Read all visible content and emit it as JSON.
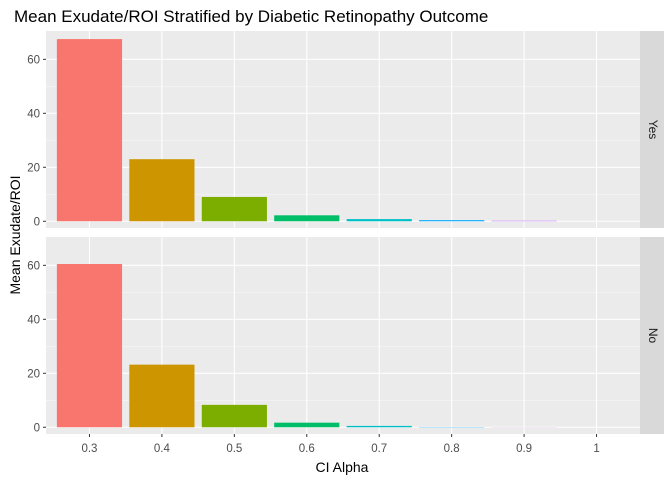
{
  "chart_data": {
    "type": "bar",
    "title": "Mean Exudate/ROI Stratified by Diabetic Retinopathy Outcome",
    "xlabel": "CI Alpha",
    "ylabel": "Mean Exudate/ROI",
    "categories": [
      "0.3",
      "0.4",
      "0.5",
      "0.6",
      "0.7",
      "0.8",
      "0.9",
      "1"
    ],
    "colors": [
      "#F8766D",
      "#CD9600",
      "#7CAE00",
      "#00BE67",
      "#00BFC4",
      "#00A9FF",
      "#C77CFF",
      "#FF61CC"
    ],
    "ylim": [
      -2.5,
      70.5
    ],
    "yticks": [
      0,
      20,
      40,
      60
    ],
    "grid": true,
    "legend": "none",
    "panels": [
      {
        "strip": "Yes",
        "values": [
          67.5,
          23.0,
          9.0,
          2.2,
          0.8,
          0.4,
          0.2,
          0.0
        ]
      },
      {
        "strip": "No",
        "values": [
          60.5,
          23.2,
          8.3,
          1.7,
          0.5,
          0.1,
          0.05,
          0.0
        ]
      }
    ]
  }
}
